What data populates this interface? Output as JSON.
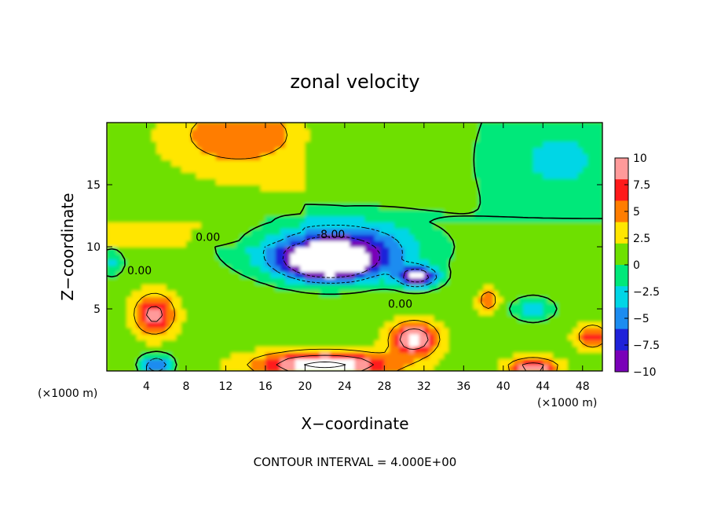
{
  "chart_data": {
    "type": "heatmap",
    "title": "zonal velocity",
    "xlabel": "X−coordinate",
    "ylabel": "Z−coordinate",
    "x_unit_left": "(×1000 m)",
    "x_unit_right": "(×1000 m)",
    "xlim": [
      0,
      50
    ],
    "ylim": [
      0,
      20
    ],
    "x_ticks": [
      4,
      8,
      12,
      16,
      20,
      24,
      28,
      32,
      36,
      40,
      44,
      48
    ],
    "y_ticks": [
      5,
      10,
      15
    ],
    "colorbar": {
      "range": [
        -10,
        10
      ],
      "tick_values": [
        10,
        7.5,
        5,
        2.5,
        0,
        -2.5,
        -5,
        -7.5,
        -10
      ],
      "tick_labels": [
        "10",
        "7.5",
        "5",
        "2.5",
        "0",
        "−2.5",
        "−5",
        "−7.5",
        "−10"
      ],
      "colors_top_to_bottom": [
        "#ff9a9a",
        "#ff1a1a",
        "#ff7d00",
        "#ffe600",
        "#6ee000",
        "#00e87a",
        "#00d6e6",
        "#1c8cf0",
        "#1f22d9",
        "#7a00b8"
      ]
    },
    "contour_labels": [
      {
        "text": "0.00",
        "x": 10.2,
        "z": 10.8
      },
      {
        "text": "0.00",
        "x": 3.3,
        "z": 8.1
      },
      {
        "text": "-8.00",
        "x": 22.6,
        "z": 11.0
      },
      {
        "text": "0.00",
        "x": 29.6,
        "z": 5.4
      }
    ],
    "features": [
      {
        "name": "negative core",
        "x": 22.5,
        "z": 8.7,
        "value": -13
      },
      {
        "name": "negative core east",
        "x": 31.3,
        "z": 7.6,
        "value": -12
      },
      {
        "name": "negative jet",
        "x": 23.0,
        "z": 10.0,
        "value": -9
      },
      {
        "name": "positive near-surface jet",
        "x": 22.0,
        "z": 0.5,
        "value": 12
      },
      {
        "name": "positive cell",
        "x": 31.0,
        "z": 2.6,
        "value": 10
      },
      {
        "name": "positive cell west",
        "x": 4.8,
        "z": 4.6,
        "value": 8
      },
      {
        "name": "positive surface east",
        "x": 43.0,
        "z": 0.3,
        "value": 9
      },
      {
        "name": "negative surface west",
        "x": 5.0,
        "z": 0.5,
        "value": -8
      },
      {
        "name": "positive east edge",
        "x": 49.0,
        "z": 2.8,
        "value": 6
      },
      {
        "name": "positive cell small",
        "x": 38.5,
        "z": 5.7,
        "value": 5
      },
      {
        "name": "upper-left high",
        "x": 12.5,
        "z": 19.0,
        "value": 4
      },
      {
        "name": "upper-right low",
        "x": 45.0,
        "z": 17.0,
        "value": -2
      },
      {
        "name": "west edge low",
        "x": 0.5,
        "z": 8.7,
        "value": -4
      },
      {
        "name": "east low",
        "x": 43.0,
        "z": 5.0,
        "value": -5
      }
    ]
  },
  "footer": {
    "contour_interval": "CONTOUR INTERVAL = 4.000E+00"
  }
}
